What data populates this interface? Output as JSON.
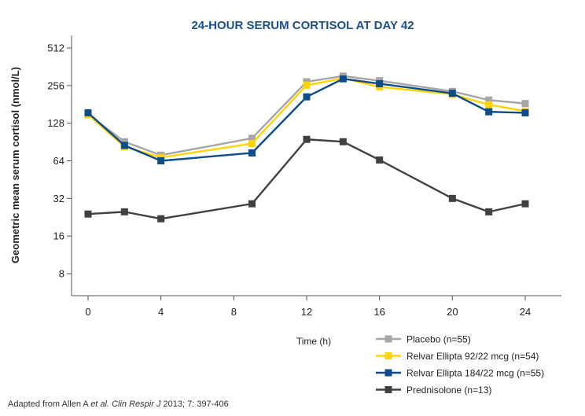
{
  "chart_data": {
    "type": "line",
    "title": "24-HOUR SERUM CORTISOL AT DAY 42",
    "title_color": "#1a4f8b",
    "xlabel": "Time (h)",
    "ylabel": "Geometric mean serum cortisol (nmol/L)",
    "x_ticks": [
      "0",
      "4",
      "8",
      "12",
      "16",
      "20",
      "24"
    ],
    "y_ticks": [
      "8",
      "16",
      "32",
      "64",
      "128",
      "256",
      "512"
    ],
    "y_scale": "log2",
    "xlim": [
      -1,
      26
    ],
    "ylim": [
      5.6,
      600
    ],
    "grid": false,
    "legend_position": "bottom-right",
    "series": [
      {
        "name": "Placebo (n=55)",
        "color": "#a6a6a6",
        "x": [
          0,
          2,
          4,
          9,
          12,
          14,
          16,
          20,
          22,
          24
        ],
        "y": [
          150,
          91,
          71,
          97,
          275,
          305,
          280,
          230,
          196,
          184
        ]
      },
      {
        "name": "Relvar Ellipta 92/22 mcg (n=54)",
        "color": "#ffd400",
        "x": [
          0,
          2,
          4,
          9,
          12,
          14,
          16,
          20,
          22,
          24
        ],
        "y": [
          150,
          83,
          68,
          88,
          258,
          293,
          250,
          218,
          180,
          160
        ]
      },
      {
        "name": "Relvar Ellipta 184/22 mcg (n=55)",
        "color": "#0c4c8a",
        "x": [
          0,
          2,
          4,
          9,
          12,
          14,
          16,
          20,
          22,
          24
        ],
        "y": [
          155,
          85,
          64,
          74,
          208,
          290,
          265,
          222,
          158,
          155
        ]
      },
      {
        "name": "Prednisolone (n=13)",
        "color": "#404040",
        "x": [
          0,
          2,
          4,
          9,
          12,
          14,
          16,
          20,
          22,
          24
        ],
        "y": [
          24,
          25,
          22,
          29,
          95,
          91,
          65,
          32,
          25,
          29
        ]
      }
    ]
  },
  "footnote": {
    "prefix": "Adapted from Allen A ",
    "italic": "et al. Clin Respir J",
    "suffix": " 2013; 7: 397-406"
  }
}
